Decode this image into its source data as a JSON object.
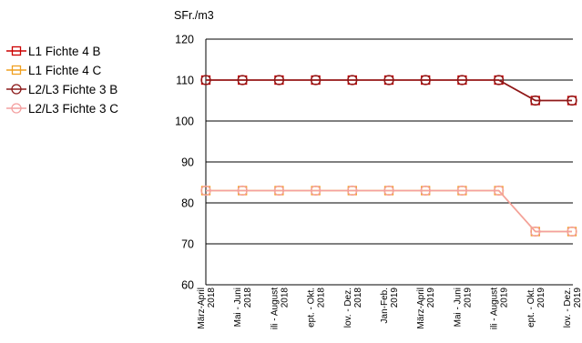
{
  "chart_data": {
    "type": "line",
    "ylabel": "SFr./m3",
    "ylim": [
      60,
      120
    ],
    "yticks": [
      60,
      70,
      80,
      90,
      100,
      110,
      120
    ],
    "grid": true,
    "legend_position": "left",
    "categories": [
      [
        "März-April",
        "2018"
      ],
      [
        "Mai - Juni",
        "2018"
      ],
      [
        "ili - August",
        "2018"
      ],
      [
        "ept. - Okt.",
        "2018"
      ],
      [
        "lov. - Dez.",
        "2018"
      ],
      [
        "Jan-Feb.",
        "2019"
      ],
      [
        "März-April",
        "2019"
      ],
      [
        "Mai - Juni",
        "2019"
      ],
      [
        "ili - August",
        "2019"
      ],
      [
        "ept. - Okt.",
        "2019"
      ],
      [
        "lov. - Dez.",
        "2019"
      ]
    ],
    "series": [
      {
        "name": "L1 Fichte 4 B",
        "color": "#cc0000",
        "marker": "square",
        "values": [
          110,
          110,
          110,
          110,
          110,
          110,
          110,
          110,
          110,
          105,
          105
        ]
      },
      {
        "name": "L1 Fichte 4 C",
        "color": "#f0a020",
        "marker": "square",
        "values": [
          83,
          83,
          83,
          83,
          83,
          83,
          83,
          83,
          83,
          73,
          73
        ]
      },
      {
        "name": "L2/L3 Fichte 3 B",
        "color": "#8b1a1a",
        "marker": "circle",
        "values": [
          110,
          110,
          110,
          110,
          110,
          110,
          110,
          110,
          110,
          105,
          105
        ]
      },
      {
        "name": "L2/L3 Fichte 3 C",
        "color": "#f4a0a0",
        "marker": "circle",
        "values": [
          83,
          83,
          83,
          83,
          83,
          83,
          83,
          83,
          83,
          73,
          73
        ]
      }
    ]
  }
}
